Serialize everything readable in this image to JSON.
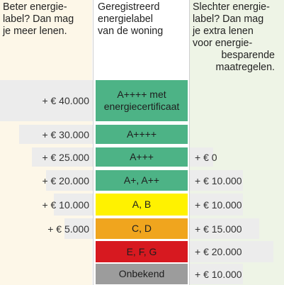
{
  "headers": {
    "left": [
      "Beter energie-",
      "label? Dan mag",
      "je meer lenen."
    ],
    "middle": [
      "Geregistreerd",
      "energielabel",
      "van de woning"
    ],
    "right": [
      "Slechter energie-",
      "label? Dan mag",
      "je extra lenen",
      "voor energie-",
      "besparende",
      "maatregelen."
    ]
  },
  "rows": [
    {
      "more_loan": "+ € 40.000",
      "label_line1": "A++++ met",
      "label_line2": "energiecertificaat",
      "extra_loan": "",
      "color": "#4db386"
    },
    {
      "more_loan": "+ € 30.000",
      "label_line1": "A++++",
      "label_line2": "",
      "extra_loan": "",
      "color": "#4db386"
    },
    {
      "more_loan": "+ € 25.000",
      "label_line1": "A+++",
      "label_line2": "",
      "extra_loan": "+ € 0",
      "color": "#4db386"
    },
    {
      "more_loan": "+ € 20.000",
      "label_line1": "A+, A++",
      "label_line2": "",
      "extra_loan": "+ € 10.000",
      "color": "#4db386"
    },
    {
      "more_loan": "+ € 10.000",
      "label_line1": "A, B",
      "label_line2": "",
      "extra_loan": "+ € 10.000",
      "color": "#fff200"
    },
    {
      "more_loan": "+ € 5.000",
      "label_line1": "C, D",
      "label_line2": "",
      "extra_loan": "+ € 15.000",
      "color": "#f0a51e"
    },
    {
      "more_loan": "",
      "label_line1": "E, F, G",
      "label_line2": "",
      "extra_loan": "+ € 20.000",
      "color": "#d71920"
    },
    {
      "more_loan": "",
      "label_line1": "Onbekend",
      "label_line2": "",
      "extra_loan": "+ € 10.000",
      "color": "#9c9c9c"
    }
  ]
}
